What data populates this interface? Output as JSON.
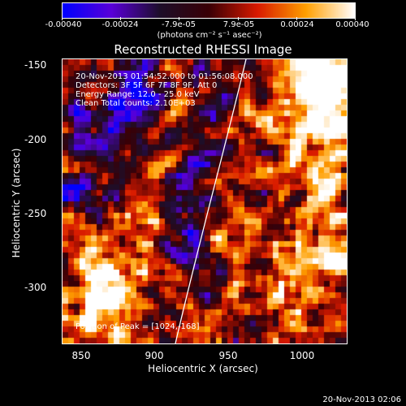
{
  "colorbar": {
    "tick_labels": [
      "-0.00040",
      "-0.00024",
      "-7.9e-05",
      "7.9e-05",
      "0.00024",
      "0.00040"
    ],
    "units": "(photons cm⁻² s⁻¹ asec⁻²)",
    "colors": [
      "#0000ff",
      "#5a00d8",
      "#1e0f2a",
      "#3a0006",
      "#d91a00",
      "#ffa000",
      "#ffffff"
    ]
  },
  "title": "Reconstructed RHESSI Image",
  "info_lines": [
    "20-Nov-2013 01:54:52.000 to 01:56:08.000",
    "Detectors: 3F 5F 6F 7F 8F 9F, Att 0",
    "Energy Range: 12.0 - 25.0 keV",
    "Clean    Total counts: 2.10E+03"
  ],
  "peak_text": "Position of Peak = [1024,-168]",
  "x_axis": {
    "label": "Heliocentric X (arcsec)",
    "ticks": [
      "850",
      "900",
      "950",
      "1000"
    ],
    "range": [
      837,
      1030
    ]
  },
  "y_axis": {
    "label": "Heliocentric Y (arcsec)",
    "ticks": [
      "-150",
      "-200",
      "-250",
      "-300"
    ],
    "range": [
      -341,
      -147
    ]
  },
  "timestamp": "20-Nov-2013 02:06"
}
